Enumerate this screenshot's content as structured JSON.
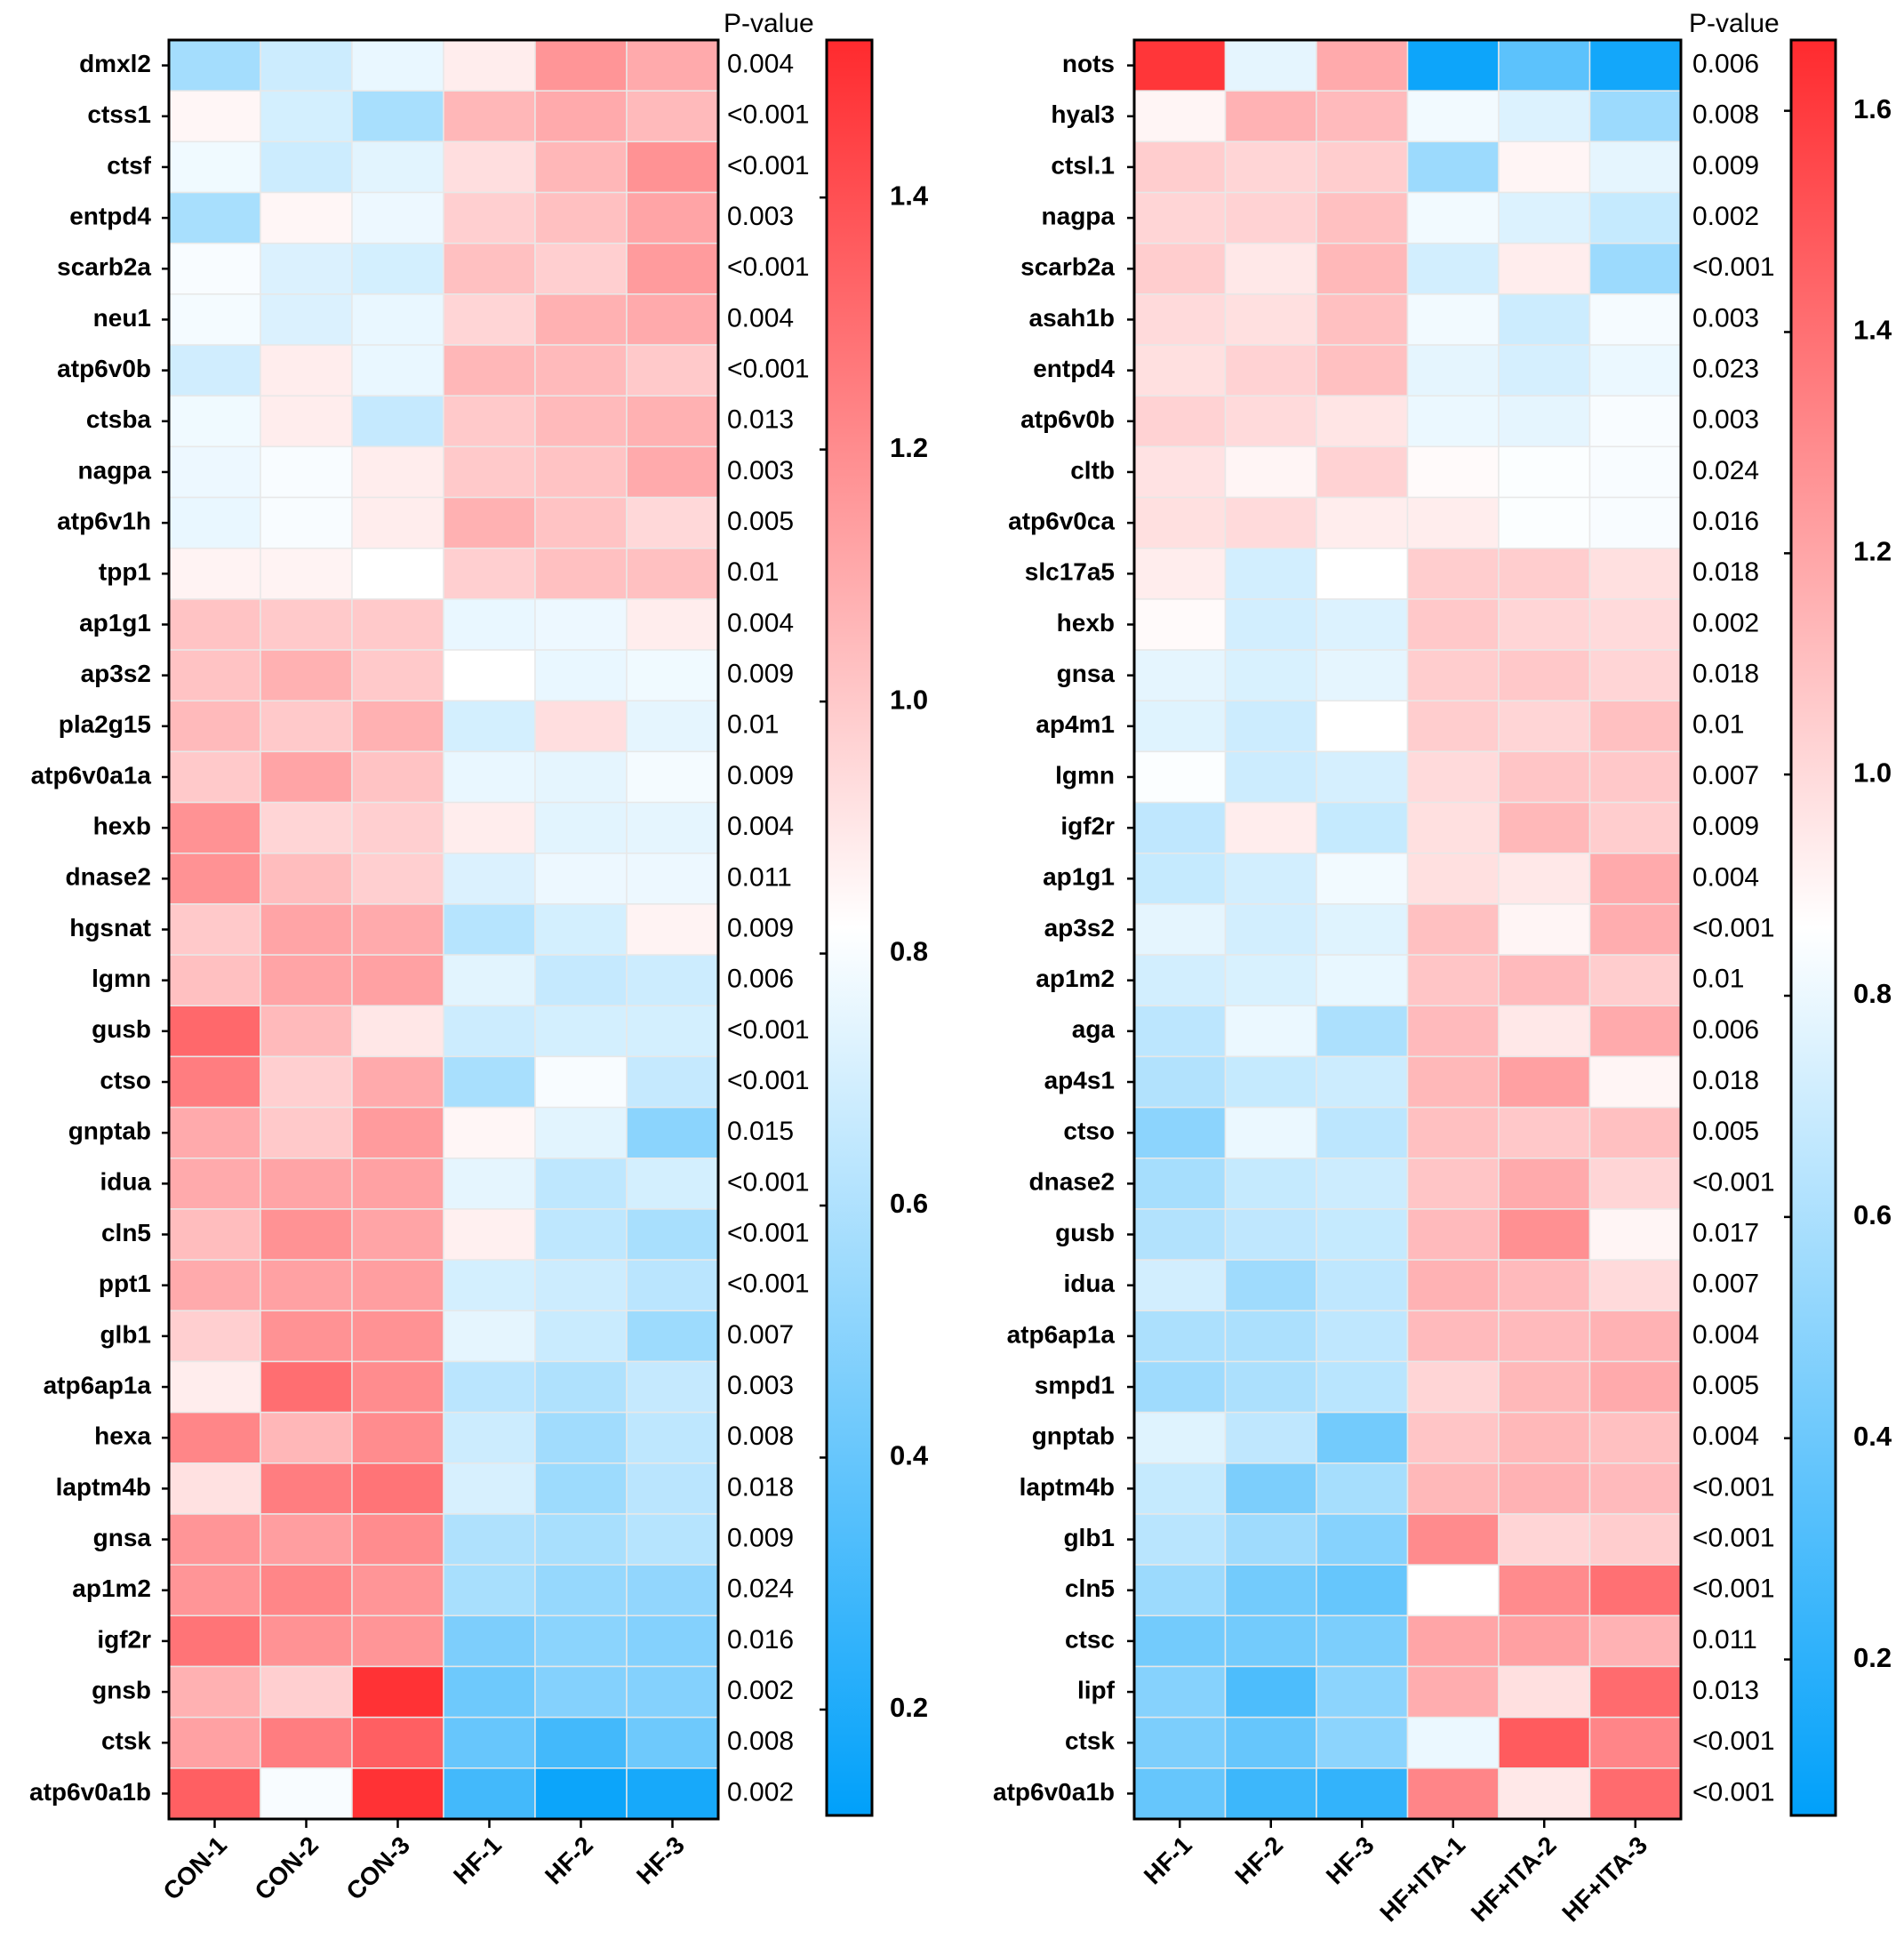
{
  "chart_data": [
    {
      "type": "heatmap",
      "p_value_title": "P-value",
      "columns": [
        "CON-1",
        "CON-2",
        "CON-3",
        "HF-1",
        "HF-2",
        "HF-3"
      ],
      "rows": [
        "dmxl2",
        "ctss1",
        "ctsf",
        "entpd4",
        "scarb2a",
        "neu1",
        "atp6v0b",
        "ctsba",
        "nagpa",
        "atp6v1h",
        "tpp1",
        "ap1g1",
        "ap3s2",
        "pla2g15",
        "atp6v0a1a",
        "hexb",
        "dnase2",
        "hgsnat",
        "lgmn",
        "gusb",
        "ctso",
        "gnptab",
        "idua",
        "cln5",
        "ppt1",
        "glb1",
        "atp6ap1a",
        "hexa",
        "laptm4b",
        "gnsa",
        "ap1m2",
        "igf2r",
        "gnsb",
        "ctsk",
        "atp6v0a1b"
      ],
      "values": [
        [
          0.57,
          0.68,
          0.76,
          0.88,
          1.17,
          1.1
        ],
        [
          0.85,
          0.7,
          0.58,
          1.06,
          1.1,
          1.05
        ],
        [
          0.78,
          0.68,
          0.74,
          0.93,
          1.06,
          1.18
        ],
        [
          0.58,
          0.85,
          0.77,
          0.98,
          1.03,
          1.12
        ],
        [
          0.8,
          0.72,
          0.7,
          1.03,
          0.98,
          1.15
        ],
        [
          0.79,
          0.72,
          0.76,
          0.96,
          1.08,
          1.1
        ],
        [
          0.69,
          0.88,
          0.76,
          1.06,
          1.05,
          1.0
        ],
        [
          0.78,
          0.88,
          0.66,
          1.0,
          1.05,
          1.08
        ],
        [
          0.77,
          0.8,
          0.88,
          1.0,
          1.02,
          1.1
        ],
        [
          0.76,
          0.8,
          0.88,
          1.08,
          1.02,
          0.95
        ],
        [
          0.86,
          0.86,
          0.82,
          0.98,
          1.03,
          1.03
        ],
        [
          1.02,
          1.0,
          1.0,
          0.76,
          0.77,
          0.88
        ],
        [
          1.02,
          1.08,
          1.0,
          0.82,
          0.76,
          0.78
        ],
        [
          1.05,
          1.0,
          1.08,
          0.7,
          0.93,
          0.75
        ],
        [
          1.0,
          1.12,
          1.02,
          0.76,
          0.75,
          0.79
        ],
        [
          1.18,
          0.96,
          0.98,
          0.88,
          0.74,
          0.75
        ],
        [
          1.18,
          1.04,
          0.98,
          0.72,
          0.77,
          0.77
        ],
        [
          1.0,
          1.12,
          1.1,
          0.62,
          0.7,
          0.86
        ],
        [
          1.03,
          1.12,
          1.13,
          0.74,
          0.66,
          0.68
        ],
        [
          1.32,
          1.05,
          0.9,
          0.68,
          0.7,
          0.7
        ],
        [
          1.25,
          0.98,
          1.1,
          0.58,
          0.8,
          0.66
        ],
        [
          1.1,
          1.0,
          1.15,
          0.85,
          0.74,
          0.5
        ],
        [
          1.1,
          1.12,
          1.13,
          0.75,
          0.64,
          0.7
        ],
        [
          1.04,
          1.18,
          1.12,
          0.87,
          0.64,
          0.58
        ],
        [
          1.1,
          1.13,
          1.14,
          0.7,
          0.68,
          0.63
        ],
        [
          0.98,
          1.18,
          1.18,
          0.75,
          0.67,
          0.55
        ],
        [
          0.88,
          1.3,
          1.2,
          0.63,
          0.6,
          0.66
        ],
        [
          1.22,
          1.06,
          1.2,
          0.68,
          0.56,
          0.64
        ],
        [
          0.92,
          1.25,
          1.28,
          0.71,
          0.55,
          0.63
        ],
        [
          1.17,
          1.14,
          1.2,
          0.6,
          0.58,
          0.62
        ],
        [
          1.17,
          1.22,
          1.17,
          0.58,
          0.53,
          0.52
        ],
        [
          1.28,
          1.18,
          1.17,
          0.46,
          0.5,
          0.48
        ],
        [
          1.08,
          0.98,
          1.5,
          0.42,
          0.48,
          0.48
        ],
        [
          1.13,
          1.25,
          1.35,
          0.4,
          0.3,
          0.42
        ],
        [
          1.35,
          0.8,
          1.5,
          0.3,
          0.15,
          0.18
        ]
      ],
      "p_values": [
        "0.004",
        "<0.001",
        "<0.001",
        "0.003",
        "<0.001",
        "0.004",
        "<0.001",
        "0.013",
        "0.003",
        "0.005",
        "0.01",
        "0.004",
        "0.009",
        "0.01",
        "0.009",
        "0.004",
        "0.011",
        "0.009",
        "0.006",
        "<0.001",
        "<0.001",
        "0.015",
        "<0.001",
        "<0.001",
        "<0.001",
        "0.007",
        "0.003",
        "0.008",
        "0.018",
        "0.009",
        "0.024",
        "0.016",
        "0.002",
        "0.008",
        "0.002"
      ],
      "clim": [
        0.116,
        1.525
      ],
      "cticks": [
        0.2,
        0.4,
        0.6,
        {
          "value": 0.8,
          "label": "0.8"
        },
        {
          "value": 1,
          "label": "1.0"
        },
        1.2,
        1.4
      ],
      "colors": {
        "low": "#00a0fa",
        "mid": "#ffffff",
        "high": "#ff2a2e"
      }
    },
    {
      "type": "heatmap",
      "p_value_title": "P-value",
      "columns": [
        "HF-1",
        "HF-2",
        "HF-3",
        "HF+ITA-1",
        "HF+ITA-2",
        "HF+ITA-3"
      ],
      "rows": [
        "nots",
        "hyal3",
        "ctsl.1",
        "nagpa",
        "scarb2a",
        "asah1b",
        "entpd4",
        "atp6v0b",
        "cltb",
        "atp6v0ca",
        "slc17a5",
        "hexb",
        "gnsa",
        "ap4m1",
        "lgmn",
        "igf2r",
        "ap1g1",
        "ap3s2",
        "ap1m2",
        "aga",
        "ap4s1",
        "ctso",
        "dnase2",
        "gusb",
        "idua",
        "atp6ap1a",
        "smpd1",
        "gnptab",
        "laptm4b",
        "glb1",
        "cln5",
        "ctsc",
        "lipf",
        "ctsk",
        "atp6v0a1b"
      ],
      "values": [
        [
          1.62,
          0.78,
          1.18,
          0.1,
          0.35,
          0.12
        ],
        [
          0.9,
          1.15,
          1.12,
          0.82,
          0.75,
          0.55
        ],
        [
          1.05,
          1.02,
          1.05,
          0.55,
          0.9,
          0.78
        ],
        [
          1.02,
          1.03,
          1.1,
          0.82,
          0.75,
          0.68
        ],
        [
          1.05,
          0.95,
          1.13,
          0.72,
          0.93,
          0.55
        ],
        [
          1.0,
          0.98,
          1.1,
          0.82,
          0.7,
          0.83
        ],
        [
          0.98,
          1.03,
          1.1,
          0.78,
          0.73,
          0.8
        ],
        [
          1.03,
          1.0,
          0.96,
          0.8,
          0.78,
          0.84
        ],
        [
          0.97,
          0.9,
          1.03,
          0.88,
          0.85,
          0.84
        ],
        [
          0.98,
          1.0,
          0.93,
          0.93,
          0.85,
          0.84
        ],
        [
          0.93,
          0.72,
          0.86,
          1.05,
          1.05,
          0.98
        ],
        [
          0.88,
          0.72,
          0.75,
          1.07,
          1.02,
          1.0
        ],
        [
          0.78,
          0.74,
          0.78,
          1.05,
          1.07,
          1.02
        ],
        [
          0.76,
          0.7,
          0.86,
          1.05,
          1.02,
          1.1
        ],
        [
          0.85,
          0.7,
          0.73,
          1.0,
          1.08,
          1.07
        ],
        [
          0.66,
          0.93,
          0.68,
          0.98,
          1.13,
          1.05
        ],
        [
          0.68,
          0.72,
          0.82,
          0.98,
          0.95,
          1.18
        ],
        [
          0.78,
          0.72,
          0.76,
          1.1,
          0.9,
          1.17
        ],
        [
          0.72,
          0.74,
          0.79,
          1.08,
          1.12,
          1.05
        ],
        [
          0.65,
          0.8,
          0.6,
          1.12,
          0.95,
          1.18
        ],
        [
          0.62,
          0.68,
          0.7,
          1.13,
          1.22,
          0.9
        ],
        [
          0.5,
          0.8,
          0.65,
          1.1,
          1.07,
          1.1
        ],
        [
          0.58,
          0.68,
          0.7,
          1.08,
          1.18,
          1.02
        ],
        [
          0.62,
          0.66,
          0.68,
          1.12,
          1.28,
          0.9
        ],
        [
          0.72,
          0.56,
          0.66,
          1.15,
          1.12,
          1.0
        ],
        [
          0.6,
          0.6,
          0.66,
          1.12,
          1.12,
          1.15
        ],
        [
          0.56,
          0.6,
          0.64,
          1.02,
          1.13,
          1.18
        ],
        [
          0.76,
          0.66,
          0.42,
          1.08,
          1.13,
          1.1
        ],
        [
          0.68,
          0.45,
          0.58,
          1.13,
          1.15,
          1.12
        ],
        [
          0.64,
          0.56,
          0.48,
          1.3,
          1.02,
          1.05
        ],
        [
          0.55,
          0.42,
          0.38,
          0.86,
          1.3,
          1.4
        ],
        [
          0.42,
          0.42,
          0.45,
          1.2,
          1.22,
          1.15
        ],
        [
          0.48,
          0.3,
          0.5,
          1.17,
          0.98,
          1.42
        ],
        [
          0.45,
          0.38,
          0.5,
          0.8,
          1.48,
          1.32
        ],
        [
          0.38,
          0.25,
          0.22,
          1.32,
          0.95,
          1.42
        ]
      ],
      "p_values": [
        "0.006",
        "0.008",
        "0.009",
        "0.002",
        "<0.001",
        "0.003",
        "0.023",
        "0.003",
        "0.024",
        "0.016",
        "0.018",
        "0.002",
        "0.018",
        "0.01",
        "0.007",
        "0.009",
        "0.004",
        "<0.001",
        "0.01",
        "0.006",
        "0.018",
        "0.005",
        "<0.001",
        "0.017",
        "0.007",
        "0.004",
        "0.005",
        "0.004",
        "<0.001",
        "<0.001",
        "<0.001",
        "0.011",
        "0.013",
        "<0.001",
        "<0.001"
      ],
      "clim": [
        0.059,
        1.664
      ],
      "cticks": [
        0.2,
        0.4,
        0.6,
        0.8,
        {
          "value": 1,
          "label": "1.0"
        },
        1.2,
        1.4,
        1.6
      ],
      "colors": {
        "low": "#00a0fa",
        "mid": "#ffffff",
        "high": "#ff2a2e"
      }
    }
  ]
}
